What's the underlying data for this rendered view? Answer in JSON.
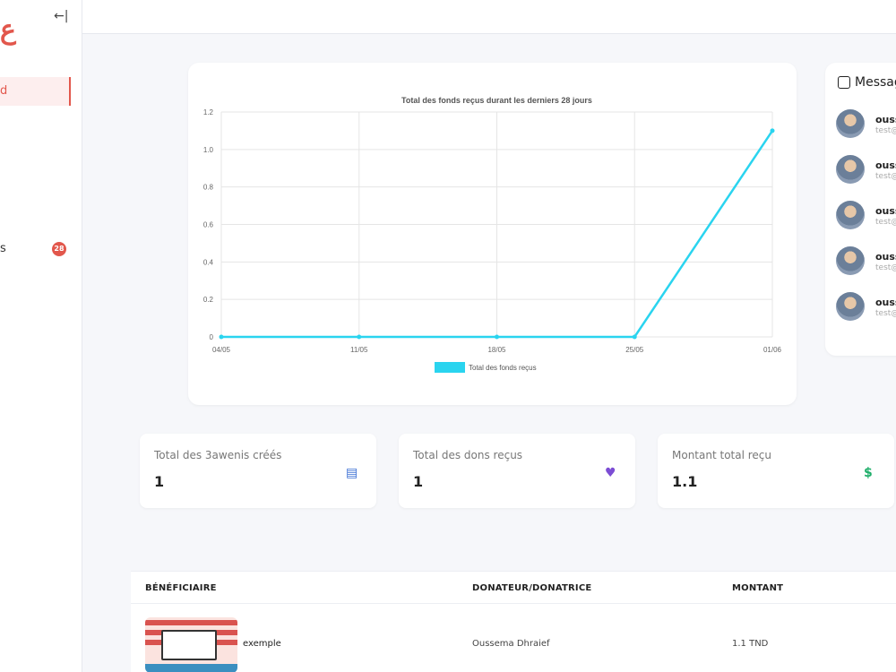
{
  "sidebar": {
    "logo": "ع",
    "collapse_icon": "←|",
    "items": [
      {
        "label": "d",
        "active": true
      },
      {
        "label": "s",
        "badge": "28"
      }
    ]
  },
  "chart_data": {
    "type": "line",
    "title": "Total des fonds reçus durant les derniers 28 jours",
    "categories": [
      "04/05",
      "11/05",
      "18/05",
      "25/05",
      "01/06"
    ],
    "series": [
      {
        "name": "Total des fonds reçus",
        "values": [
          0,
          0,
          0,
          0,
          1.1
        ],
        "color": "#2ad4ef"
      }
    ],
    "ylim": [
      0,
      1.2
    ],
    "yticks": [
      "0",
      "0.2",
      "0.4",
      "0.6",
      "0.8",
      "1.0",
      "1.2"
    ],
    "grid": true,
    "legend": "bottom"
  },
  "messages": {
    "title": "Messag",
    "items": [
      {
        "name": "ouss",
        "email": "test@"
      },
      {
        "name": "ouss",
        "email": "test@"
      },
      {
        "name": "ouss",
        "email": "test@"
      },
      {
        "name": "ouss",
        "email": "test@"
      },
      {
        "name": "ouss",
        "email": "test@"
      }
    ]
  },
  "stats": [
    {
      "label": "Total des 3awenis créés",
      "value": "1",
      "icon": "newspaper-icon",
      "color": "#3b6fd4",
      "glyph": "▤"
    },
    {
      "label": "Total des dons reçus",
      "value": "1",
      "icon": "hand-heart-icon",
      "color": "#7c4dd4",
      "glyph": "♥"
    },
    {
      "label": "Montant total reçu",
      "value": "1.1",
      "icon": "dollar-icon",
      "color": "#1fae6a",
      "glyph": "$"
    }
  ],
  "table": {
    "headers": [
      "BÉNÉFICIAIRE",
      "DONATEUR/DONATRICE",
      "MONTANT"
    ],
    "rows": [
      {
        "beneficiary": "exemple",
        "donor": "Oussema Dhraief",
        "amount": "1.1 TND"
      }
    ]
  }
}
